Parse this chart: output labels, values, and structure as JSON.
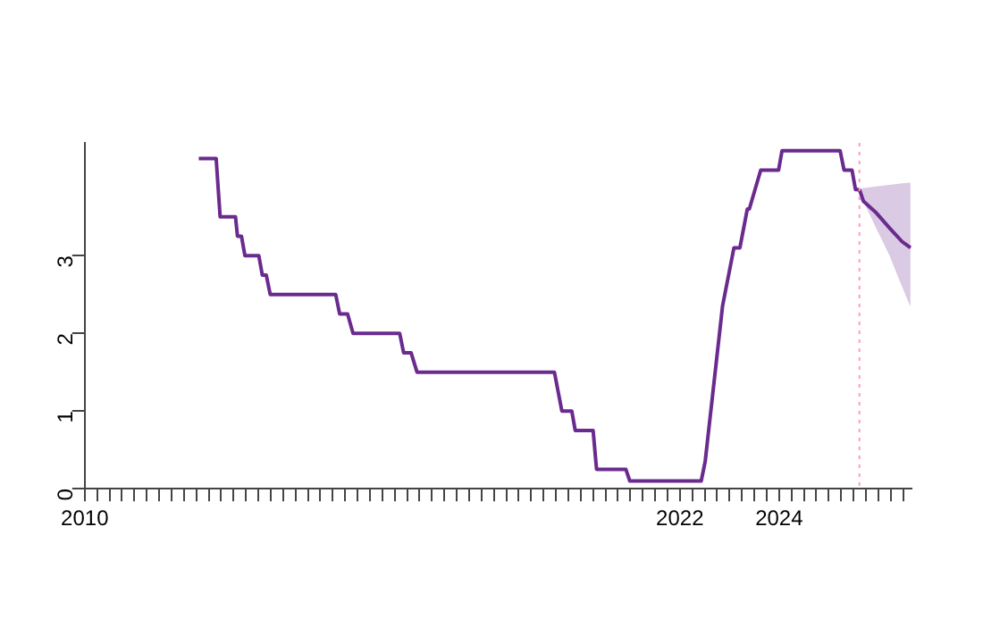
{
  "chart_data": {
    "type": "line",
    "xlim": [
      2010,
      2026.67
    ],
    "ylim": [
      0,
      4.45
    ],
    "yticks": [
      0,
      1,
      2,
      3
    ],
    "xticks": [
      {
        "value": 2010,
        "label": "2010"
      },
      {
        "value": 2010.25,
        "label": null
      },
      {
        "value": 2010.5,
        "label": null
      },
      {
        "value": 2010.75,
        "label": null
      },
      {
        "value": 2011,
        "label": null
      },
      {
        "value": 2011.25,
        "label": null
      },
      {
        "value": 2011.5,
        "label": null
      },
      {
        "value": 2011.75,
        "label": null
      },
      {
        "value": 2012,
        "label": null
      },
      {
        "value": 2012.25,
        "label": null
      },
      {
        "value": 2012.5,
        "label": null
      },
      {
        "value": 2012.75,
        "label": null
      },
      {
        "value": 2013,
        "label": null
      },
      {
        "value": 2013.25,
        "label": null
      },
      {
        "value": 2013.5,
        "label": null
      },
      {
        "value": 2013.75,
        "label": null
      },
      {
        "value": 2014,
        "label": null
      },
      {
        "value": 2014.25,
        "label": null
      },
      {
        "value": 2014.5,
        "label": null
      },
      {
        "value": 2014.75,
        "label": null
      },
      {
        "value": 2015,
        "label": null
      },
      {
        "value": 2015.25,
        "label": null
      },
      {
        "value": 2015.5,
        "label": null
      },
      {
        "value": 2015.75,
        "label": null
      },
      {
        "value": 2016,
        "label": null
      },
      {
        "value": 2016.25,
        "label": null
      },
      {
        "value": 2016.5,
        "label": null
      },
      {
        "value": 2016.75,
        "label": null
      },
      {
        "value": 2017,
        "label": null
      },
      {
        "value": 2017.25,
        "label": null
      },
      {
        "value": 2017.5,
        "label": null
      },
      {
        "value": 2017.75,
        "label": null
      },
      {
        "value": 2018,
        "label": null
      },
      {
        "value": 2018.25,
        "label": null
      },
      {
        "value": 2018.5,
        "label": null
      },
      {
        "value": 2018.75,
        "label": null
      },
      {
        "value": 2019,
        "label": null
      },
      {
        "value": 2019.25,
        "label": null
      },
      {
        "value": 2019.5,
        "label": null
      },
      {
        "value": 2019.75,
        "label": null
      },
      {
        "value": 2020,
        "label": null
      },
      {
        "value": 2020.25,
        "label": null
      },
      {
        "value": 2020.5,
        "label": null
      },
      {
        "value": 2020.75,
        "label": null
      },
      {
        "value": 2021,
        "label": null
      },
      {
        "value": 2021.25,
        "label": null
      },
      {
        "value": 2021.5,
        "label": null
      },
      {
        "value": 2021.75,
        "label": null
      },
      {
        "value": 2022,
        "label": "2022"
      },
      {
        "value": 2022.25,
        "label": null
      },
      {
        "value": 2022.5,
        "label": null
      },
      {
        "value": 2022.75,
        "label": null
      },
      {
        "value": 2023,
        "label": null
      },
      {
        "value": 2023.25,
        "label": null
      },
      {
        "value": 2023.5,
        "label": null
      },
      {
        "value": 2023.75,
        "label": null
      },
      {
        "value": 2024,
        "label": "2024"
      },
      {
        "value": 2024.25,
        "label": null
      },
      {
        "value": 2024.5,
        "label": null
      },
      {
        "value": 2024.75,
        "label": null
      },
      {
        "value": 2025,
        "label": null
      },
      {
        "value": 2025.25,
        "label": null
      },
      {
        "value": 2025.5,
        "label": null
      },
      {
        "value": 2025.75,
        "label": null
      },
      {
        "value": 2026,
        "label": null
      },
      {
        "value": 2026.25,
        "label": null
      },
      {
        "value": 2026.5,
        "label": null
      }
    ],
    "grid": false,
    "legend": false,
    "marker": "none",
    "line_style": "solid",
    "ref_lines": [
      {
        "axis": "x",
        "value": 2025.62,
        "color": "#ff99cc",
        "line_style": "dotted"
      }
    ],
    "series": [
      {
        "color": "#6a2a8e",
        "x": [
          2012.3,
          2012.65,
          2012.73,
          2013.04,
          2013.08,
          2013.16,
          2013.23,
          2013.51,
          2013.58,
          2013.66,
          2013.74,
          2015.06,
          2015.14,
          2015.3,
          2015.41,
          2016.35,
          2016.43,
          2016.58,
          2016.7,
          2019.47,
          2019.62,
          2019.82,
          2019.89,
          2020.25,
          2020.32,
          2020.91,
          2020.99,
          2022.43,
          2022.51,
          2022.86,
          2023.09,
          2023.21,
          2023.36,
          2023.4,
          2023.63,
          2023.99,
          2024.06,
          2025.23,
          2025.31,
          2025.47,
          2025.54,
          2025.62
        ],
        "values": [
          4.25,
          4.25,
          3.5,
          3.5,
          3.25,
          3.25,
          3,
          3,
          2.75,
          2.75,
          2.5,
          2.5,
          2.25,
          2.25,
          2,
          2,
          1.75,
          1.75,
          1.5,
          1.5,
          1,
          1,
          0.75,
          0.75,
          0.25,
          0.25,
          0.1,
          0.1,
          0.35,
          2.35,
          3.1,
          3.1,
          3.6,
          3.6,
          4.1,
          4.1,
          4.35,
          4.35,
          4.1,
          4.1,
          3.85,
          3.85
        ]
      },
      {
        "color": "#6a2a8e",
        "x": [
          2025.62,
          2025.7,
          2025.96,
          2026.22,
          2026.48,
          2026.65
        ],
        "values": [
          3.85,
          3.7,
          3.55,
          3.36,
          3.18,
          3.1
        ],
        "lower": [
          3.85,
          3.7,
          3.35,
          3.01,
          2.6,
          2.34
        ],
        "upper": [
          3.85,
          3.87,
          3.89,
          3.91,
          3.93,
          3.94
        ]
      }
    ]
  }
}
